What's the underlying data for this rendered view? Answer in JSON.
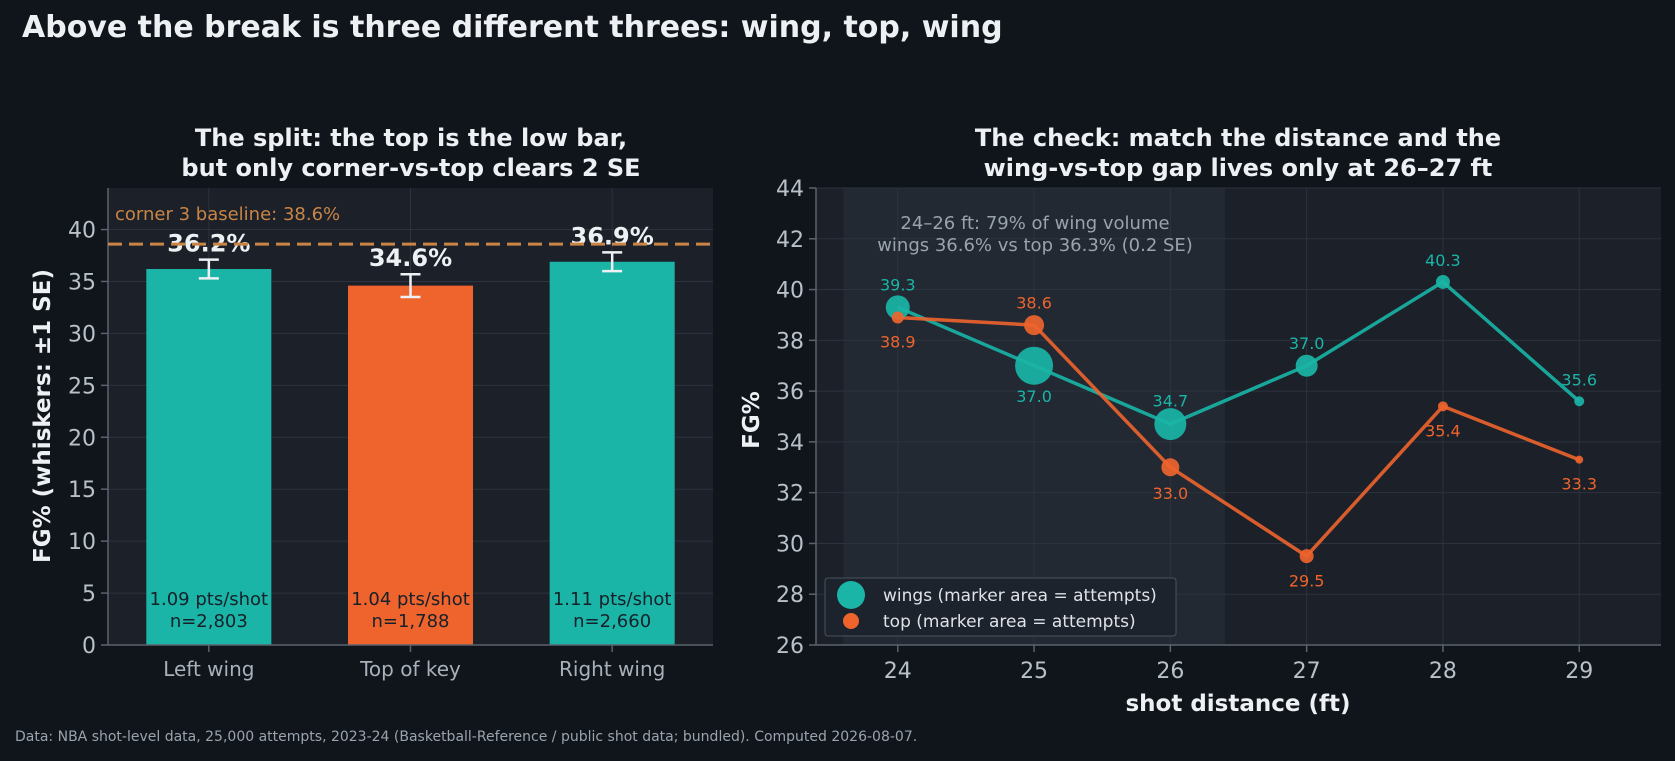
{
  "title": "Above the break is three different threes: wing, top, wing",
  "footer": "Data: NBA shot-level data, 25,000 attempts, 2023-24 (Basketball-Reference / public shot data; bundled). Computed 2026-08-07.",
  "colors": {
    "wing": "#1ab5a6",
    "top": "#ee642c",
    "baseline": "#c98545",
    "background": "#10151c",
    "panel": "#1b2029"
  },
  "chart_data": [
    {
      "type": "bar",
      "title_lines": [
        "The split: the top is the low bar,",
        "but only corner-vs-top clears 2 SE"
      ],
      "ylabel": "FG%  (whiskers: ±1 SE)",
      "xlabel": "",
      "ylim": [
        0,
        44
      ],
      "yticks": [
        "0",
        "5",
        "10",
        "15",
        "20",
        "25",
        "30",
        "35",
        "40"
      ],
      "grid": true,
      "categories": [
        "Left wing",
        "Top of key",
        "Right wing"
      ],
      "values": [
        36.2,
        34.6,
        36.9
      ],
      "se": [
        0.9,
        1.1,
        0.9
      ],
      "value_labels": [
        "36.2%",
        "34.6%",
        "36.9%"
      ],
      "pts_labels": [
        "1.09 pts/shot",
        "1.04 pts/shot",
        "1.11 pts/shot"
      ],
      "n_labels": [
        "n=2,803",
        "n=1,788",
        "n=2,660"
      ],
      "bar_colors": [
        "wing",
        "top",
        "wing"
      ],
      "baseline": {
        "value": 38.6,
        "label": "corner 3 baseline: 38.6%"
      }
    },
    {
      "type": "line",
      "title_lines": [
        "The check: match the distance and the",
        "wing-vs-top gap lives only at 26–27 ft"
      ],
      "xlabel": "shot distance (ft)",
      "ylabel": "FG%",
      "xlim": [
        23.4,
        29.6
      ],
      "ylim": [
        26,
        44
      ],
      "xticks": [
        "24",
        "25",
        "26",
        "27",
        "28",
        "29"
      ],
      "yticks": [
        "26",
        "28",
        "30",
        "32",
        "34",
        "36",
        "38",
        "40",
        "42",
        "44"
      ],
      "grid": true,
      "legend_position": "lower-left",
      "shaded_band": [
        23.6,
        26.4
      ],
      "annotation_lines": [
        "24–26 ft: 79% of wing volume",
        "wings 36.6% vs top 36.3% (0.2 SE)"
      ],
      "series": [
        {
          "name": "wings (marker area = attempts)",
          "color": "wing",
          "x": [
            24,
            25,
            26,
            27,
            28,
            29
          ],
          "y": [
            39.3,
            37.0,
            34.7,
            37.0,
            40.3,
            35.6
          ],
          "labels": [
            "39.3",
            "37.0",
            "34.7",
            "37.0",
            "40.3",
            "35.6"
          ],
          "label_pos": [
            "above",
            "below",
            "above",
            "above",
            "above",
            "above"
          ],
          "marker_r": [
            12,
            19,
            16,
            11,
            7,
            5
          ]
        },
        {
          "name": "top (marker area = attempts)",
          "color": "top",
          "x": [
            24,
            25,
            26,
            27,
            28,
            29
          ],
          "y": [
            38.9,
            38.6,
            33.0,
            29.5,
            35.4,
            33.3
          ],
          "labels": [
            "38.9",
            "38.6",
            "33.0",
            "29.5",
            "35.4",
            "33.3"
          ],
          "label_pos": [
            "below",
            "above",
            "below",
            "below",
            "below",
            "below"
          ],
          "marker_r": [
            6,
            10,
            9,
            7,
            5,
            4
          ]
        }
      ]
    }
  ]
}
